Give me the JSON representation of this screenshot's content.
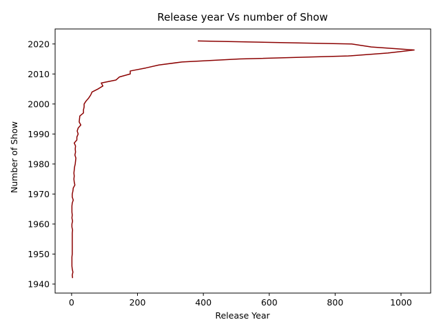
{
  "chart_data": {
    "type": "line",
    "title": "Release year Vs number of Show",
    "xlabel": "Release Year",
    "ylabel": "Number of Show",
    "xlim": [
      -50,
      1090
    ],
    "ylim": [
      1937,
      2025
    ],
    "x_ticks": [
      0,
      200,
      400,
      600,
      800,
      1000
    ],
    "y_ticks": [
      1940,
      1950,
      1960,
      1970,
      1980,
      1990,
      2000,
      2010,
      2020
    ],
    "grid": false,
    "series": [
      {
        "color": "#8b0000",
        "points": [
          [
            383,
            2021
          ],
          [
            850,
            2020
          ],
          [
            910,
            2019
          ],
          [
            1040,
            2018
          ],
          [
            960,
            2017
          ],
          [
            840,
            2016
          ],
          [
            510,
            2015
          ],
          [
            335,
            2014
          ],
          [
            265,
            2013
          ],
          [
            225,
            2012
          ],
          [
            178,
            2011
          ],
          [
            178,
            2010
          ],
          [
            145,
            2009
          ],
          [
            135,
            2008
          ],
          [
            90,
            2007
          ],
          [
            95,
            2006
          ],
          [
            80,
            2005
          ],
          [
            62,
            2004
          ],
          [
            58,
            2003
          ],
          [
            52,
            2002
          ],
          [
            44,
            2001
          ],
          [
            38,
            2000
          ],
          [
            38,
            1999
          ],
          [
            36,
            1998
          ],
          [
            36,
            1997
          ],
          [
            25,
            1996
          ],
          [
            24,
            1995
          ],
          [
            23,
            1994
          ],
          [
            28,
            1993
          ],
          [
            20,
            1992
          ],
          [
            17,
            1991
          ],
          [
            20,
            1990
          ],
          [
            16,
            1989
          ],
          [
            16,
            1988
          ],
          [
            8,
            1987
          ],
          [
            12,
            1986
          ],
          [
            11,
            1985
          ],
          [
            12,
            1984
          ],
          [
            10,
            1983
          ],
          [
            13,
            1982
          ],
          [
            12,
            1981
          ],
          [
            11,
            1980
          ],
          [
            9,
            1979
          ],
          [
            8,
            1978
          ],
          [
            7,
            1977
          ],
          [
            8,
            1976
          ],
          [
            7,
            1975
          ],
          [
            8,
            1974
          ],
          [
            10,
            1973
          ],
          [
            5,
            1972
          ],
          [
            4,
            1971
          ],
          [
            2,
            1970
          ],
          [
            2,
            1969
          ],
          [
            5,
            1968
          ],
          [
            2,
            1967
          ],
          [
            1,
            1966
          ],
          [
            1,
            1965
          ],
          [
            1,
            1964
          ],
          [
            2,
            1963
          ],
          [
            1,
            1962
          ],
          [
            3,
            1961
          ],
          [
            1,
            1960
          ],
          [
            1,
            1959
          ],
          [
            3,
            1958
          ],
          [
            2,
            1957
          ],
          [
            2,
            1956
          ],
          [
            2,
            1955
          ],
          [
            2,
            1954
          ],
          [
            2,
            1953
          ],
          [
            2,
            1952
          ],
          [
            2,
            1951
          ],
          [
            2,
            1950
          ],
          [
            1,
            1949
          ],
          [
            1,
            1948
          ],
          [
            1,
            1947
          ],
          [
            1,
            1946
          ],
          [
            2,
            1945
          ],
          [
            4,
            1944
          ],
          [
            2,
            1943
          ],
          [
            3,
            1942
          ]
        ]
      }
    ]
  }
}
